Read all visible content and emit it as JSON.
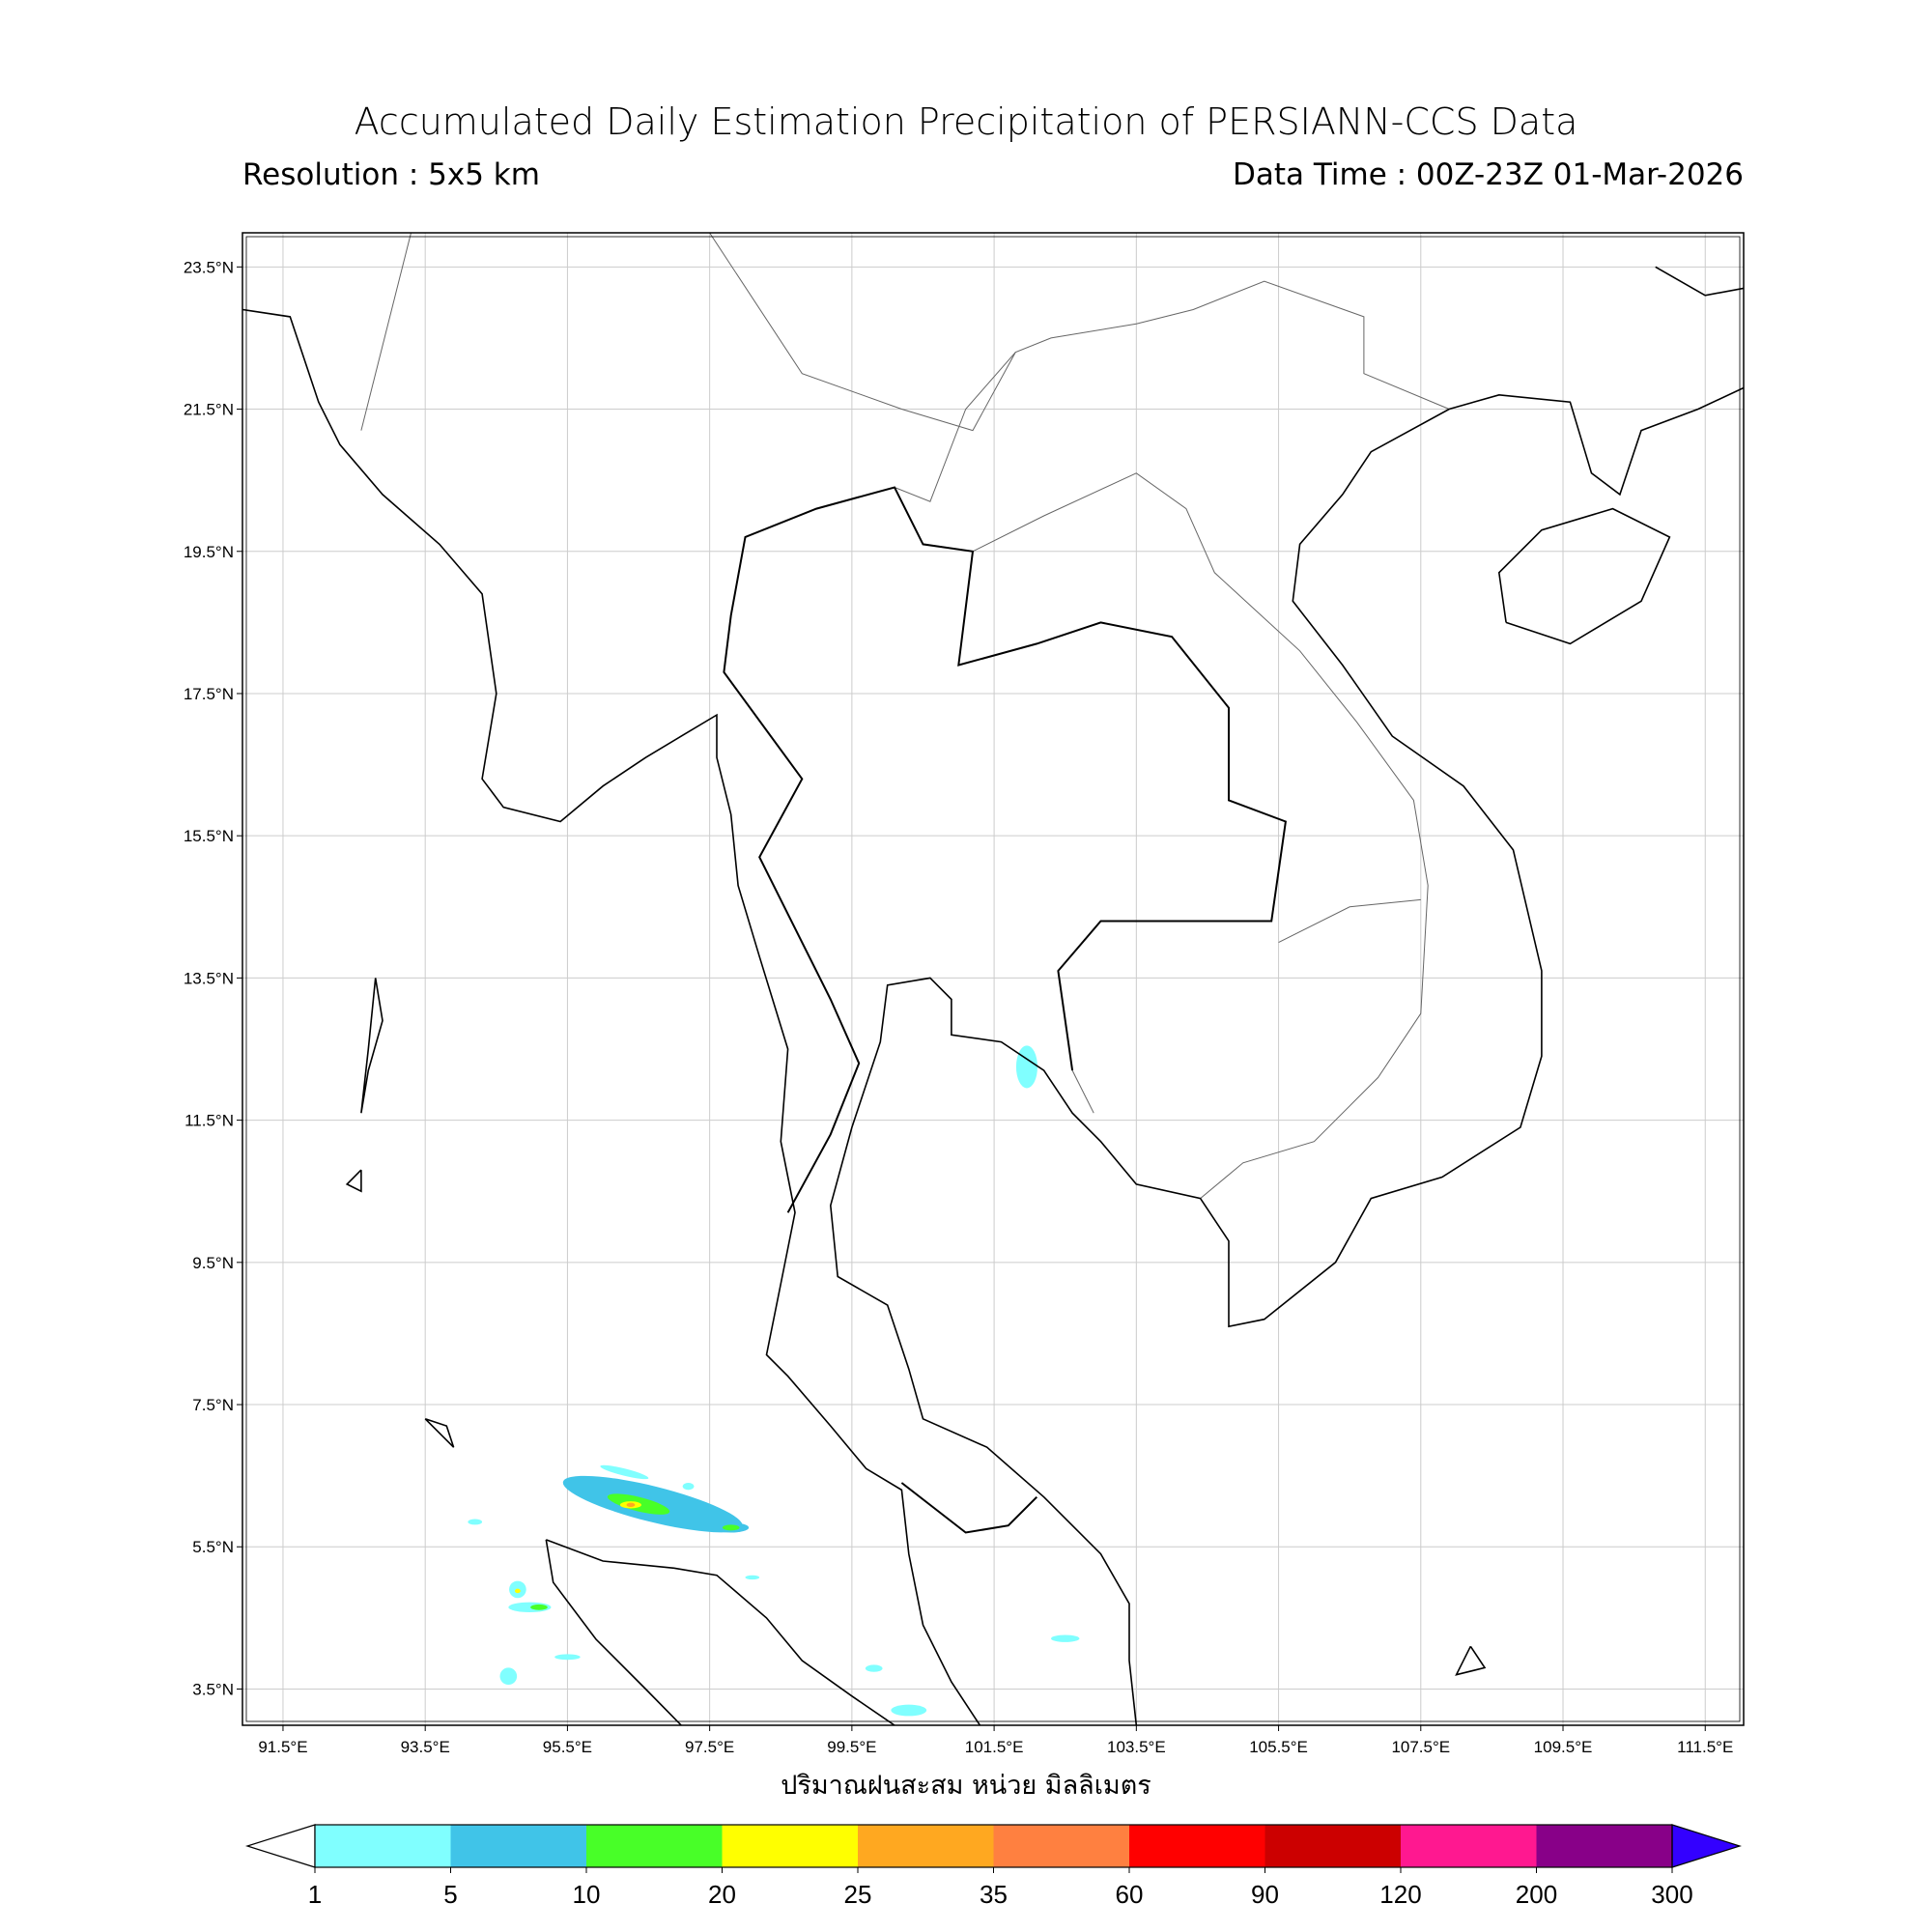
{
  "title": "Accumulated Daily Estimation Precipitation of PERSIANN-CCS Data",
  "subtitle_left": "Resolution : 5x5 km",
  "subtitle_right": "Data Time : 00Z-23Z 01-Mar-2026",
  "chart_data": {
    "type": "heatmap",
    "map_extent": {
      "lon": [
        90.93,
        112.04
      ],
      "lat": [
        2.99,
        23.98
      ]
    },
    "grid": true,
    "x_ticks": [
      "91.5°E",
      "93.5°E",
      "95.5°E",
      "97.5°E",
      "99.5°E",
      "101.5°E",
      "103.5°E",
      "105.5°E",
      "107.5°E",
      "109.5°E",
      "111.5°E"
    ],
    "x_tick_values": [
      91.5,
      93.5,
      95.5,
      97.5,
      99.5,
      101.5,
      103.5,
      105.5,
      107.5,
      109.5,
      111.5
    ],
    "y_ticks": [
      "3.5°N",
      "5.5°N",
      "7.5°N",
      "9.5°N",
      "11.5°N",
      "13.5°N",
      "15.5°N",
      "17.5°N",
      "19.5°N",
      "21.5°N",
      "23.5°N"
    ],
    "y_tick_values": [
      3.5,
      5.5,
      7.5,
      9.5,
      11.5,
      13.5,
      15.5,
      17.5,
      19.5,
      21.5,
      23.5
    ],
    "xlabel": "ปริมาณฝนสะสม หน่วย มิลลิเมตร",
    "colorbar": {
      "levels": [
        "1",
        "5",
        "10",
        "20",
        "25",
        "35",
        "60",
        "90",
        "120",
        "200",
        "300"
      ],
      "colors": [
        "#80ffff",
        "#40c4e8",
        "#48ff28",
        "#ffff00",
        "#ffa820",
        "#ff8040",
        "#ff0000",
        "#cc0000",
        "#ff1890",
        "#880088"
      ],
      "under_color": "#ffffff",
      "over_color": "#3300ff",
      "extend": "both"
    },
    "rain_areas": [
      {
        "lon": 96.7,
        "lat": 6.1,
        "level_mm": 5,
        "rlon": 1.3,
        "rlat": 0.25
      },
      {
        "lon": 96.5,
        "lat": 6.1,
        "level_mm": 10,
        "rlon": 0.45,
        "rlat": 0.1
      },
      {
        "lon": 96.39,
        "lat": 6.09,
        "level_mm": 20,
        "rlon": 0.15,
        "rlat": 0.05
      },
      {
        "lon": 96.39,
        "lat": 6.09,
        "level_mm": 25,
        "rlon": 0.06,
        "rlat": 0.03
      },
      {
        "lon": 97.8,
        "lat": 5.77,
        "level_mm": 5,
        "rlon": 0.25,
        "rlat": 0.07
      },
      {
        "lon": 97.8,
        "lat": 5.77,
        "level_mm": 10,
        "rlon": 0.12,
        "rlat": 0.04
      },
      {
        "lon": 96.3,
        "lat": 6.55,
        "level_mm": 1,
        "rlon": 0.35,
        "rlat": 0.05
      },
      {
        "lon": 94.8,
        "lat": 4.9,
        "level_mm": 1,
        "rlon": 0.12,
        "rlat": 0.12
      },
      {
        "lon": 94.8,
        "lat": 4.88,
        "level_mm": 20,
        "rlon": 0.04,
        "rlat": 0.03
      },
      {
        "lon": 94.97,
        "lat": 4.65,
        "level_mm": 1,
        "rlon": 0.3,
        "rlat": 0.07
      },
      {
        "lon": 95.1,
        "lat": 4.65,
        "level_mm": 10,
        "rlon": 0.12,
        "rlat": 0.04
      },
      {
        "lon": 94.67,
        "lat": 3.68,
        "level_mm": 1,
        "rlon": 0.12,
        "rlat": 0.12
      },
      {
        "lon": 95.5,
        "lat": 3.95,
        "level_mm": 1,
        "rlon": 0.18,
        "rlat": 0.04
      },
      {
        "lon": 94.2,
        "lat": 5.85,
        "level_mm": 1,
        "rlon": 0.1,
        "rlat": 0.04
      },
      {
        "lon": 98.1,
        "lat": 5.07,
        "level_mm": 1,
        "rlon": 0.1,
        "rlat": 0.03
      },
      {
        "lon": 97.2,
        "lat": 6.35,
        "level_mm": 1,
        "rlon": 0.08,
        "rlat": 0.05
      },
      {
        "lon": 101.96,
        "lat": 12.25,
        "level_mm": 1,
        "rlon": 0.15,
        "rlat": 0.3
      },
      {
        "lon": 102.5,
        "lat": 4.21,
        "level_mm": 1,
        "rlon": 0.2,
        "rlat": 0.05
      },
      {
        "lon": 99.81,
        "lat": 3.79,
        "level_mm": 1,
        "rlon": 0.12,
        "rlat": 0.05
      },
      {
        "lon": 100.3,
        "lat": 3.2,
        "level_mm": 1,
        "rlon": 0.25,
        "rlat": 0.08
      }
    ]
  }
}
